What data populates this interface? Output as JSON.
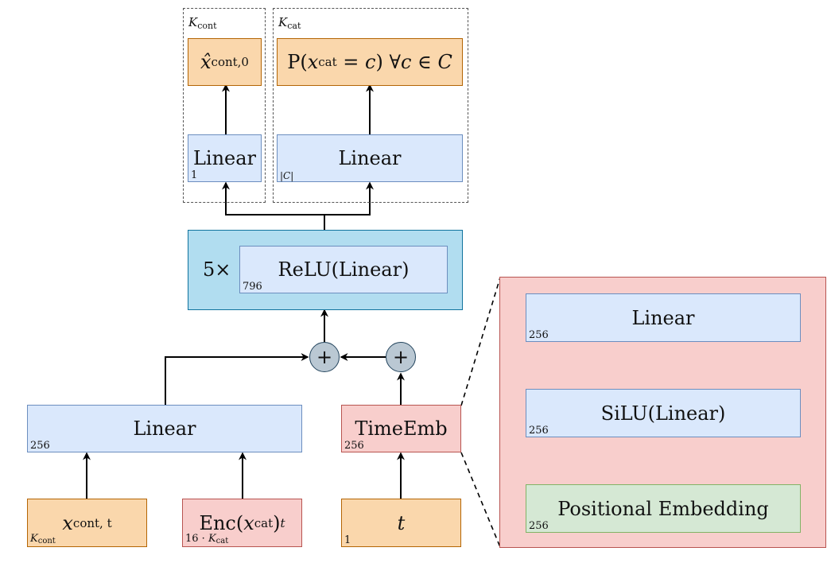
{
  "k_cont_group": {
    "name": "K",
    "sub": "cont"
  },
  "k_cat_group": {
    "name": "K",
    "sub": "cat"
  },
  "out_cont": {
    "base": "x̂",
    "sub": "cont,0"
  },
  "out_cat": {
    "text_p": "P(",
    "x": "x",
    "sub": "cat",
    "rest": " = ",
    "c": "c",
    "close": ")",
    "forall": " ∀",
    "c2": "c",
    "in": " ∈ ",
    "C": "C"
  },
  "linear_cont": {
    "label": "Linear",
    "dim": "1"
  },
  "linear_cat": {
    "label": "Linear",
    "dim": "|C|"
  },
  "relu_block": {
    "repeat": "5×",
    "label": "ReLU(Linear)",
    "dim": "796"
  },
  "plus_symbol": "+",
  "input_linear": {
    "label": "Linear",
    "dim": "256"
  },
  "time_emb": {
    "label": "TimeEmb",
    "dim": "256"
  },
  "x_cont_t": {
    "x": "x",
    "sub": "cont, t",
    "dim_name": "K",
    "dim_sub": "cont"
  },
  "enc_cat": {
    "enc": "Enc(",
    "x": "x",
    "sub": "cat",
    "close": ")",
    "t": "t",
    "dim_prefix": "16 · ",
    "dim_name": "K",
    "dim_sub": "cat"
  },
  "t_input": {
    "label": "t",
    "dim": "1"
  },
  "detail": {
    "linear": {
      "label": "Linear",
      "dim": "256"
    },
    "silu": {
      "label": "SiLU(Linear)",
      "dim": "256"
    },
    "pos_emb": {
      "label": "Positional Embedding",
      "dim": "256"
    }
  }
}
